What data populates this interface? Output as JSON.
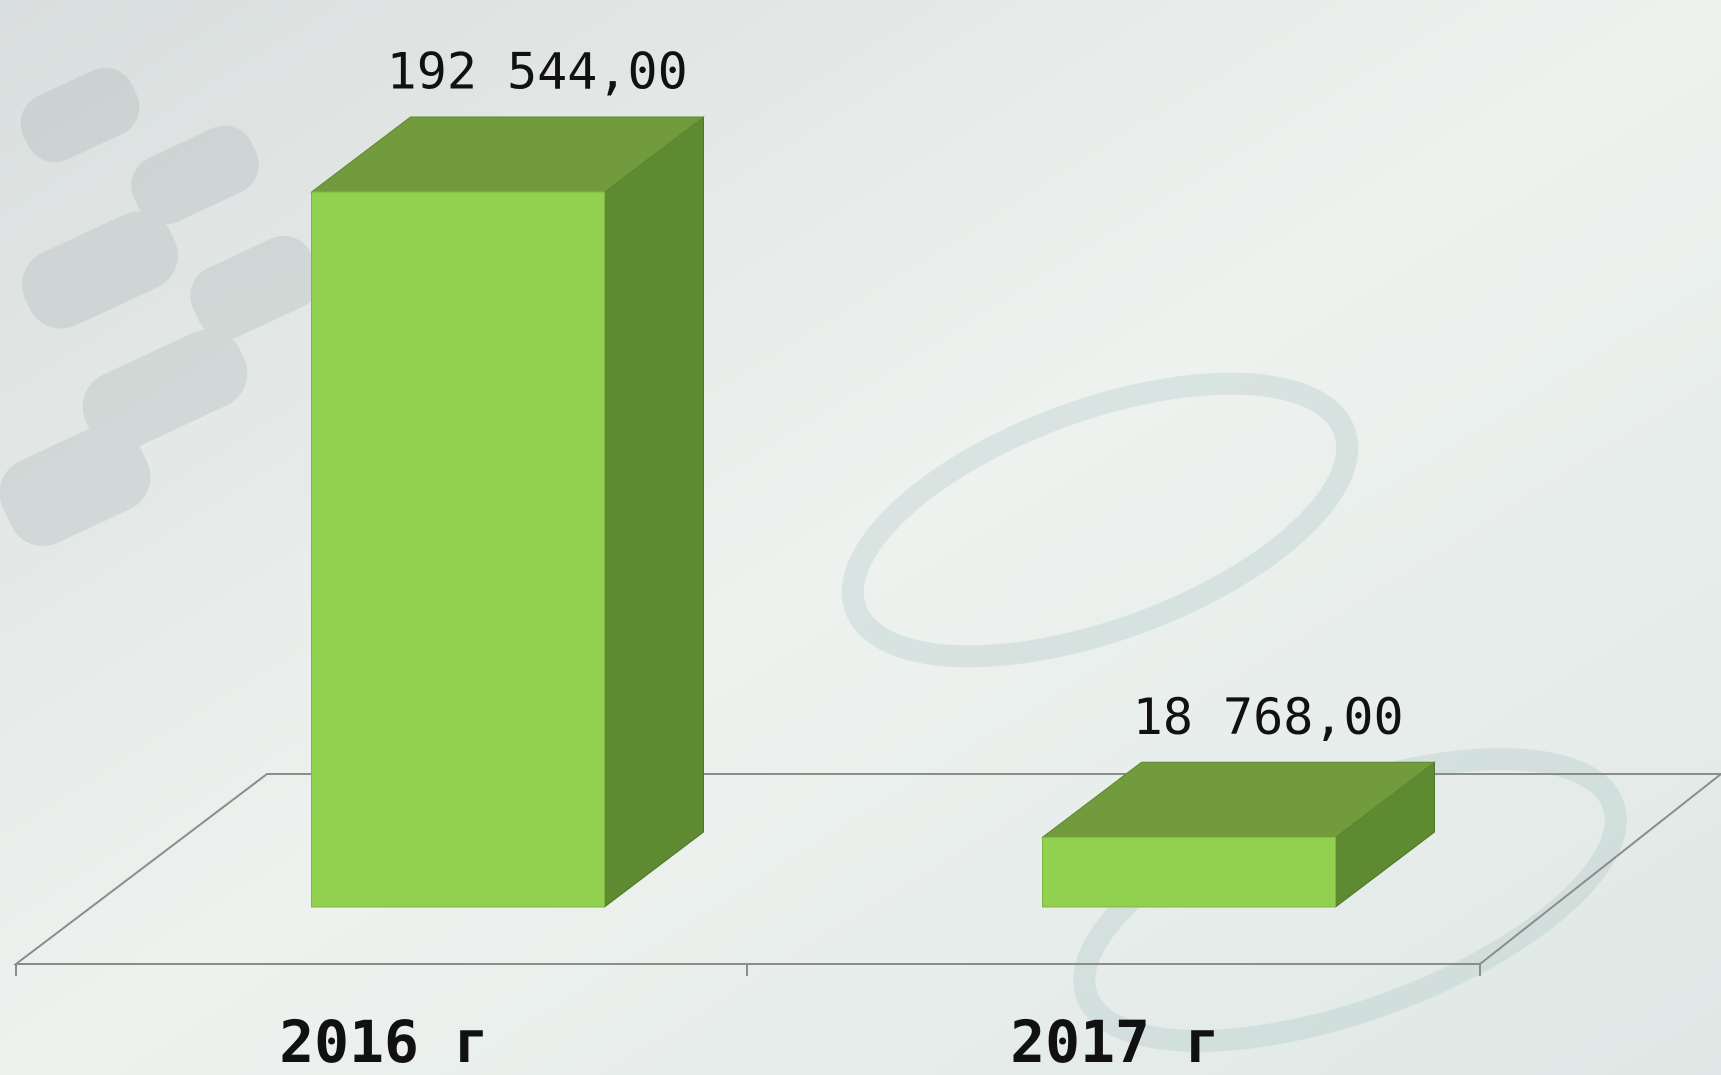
{
  "chart_data": {
    "type": "bar3d",
    "categories": [
      "2016 г",
      "2017 г"
    ],
    "values": [
      192544,
      18768
    ],
    "value_labels": [
      "192 544,00",
      "18 768,00"
    ],
    "color": "#92d050"
  }
}
